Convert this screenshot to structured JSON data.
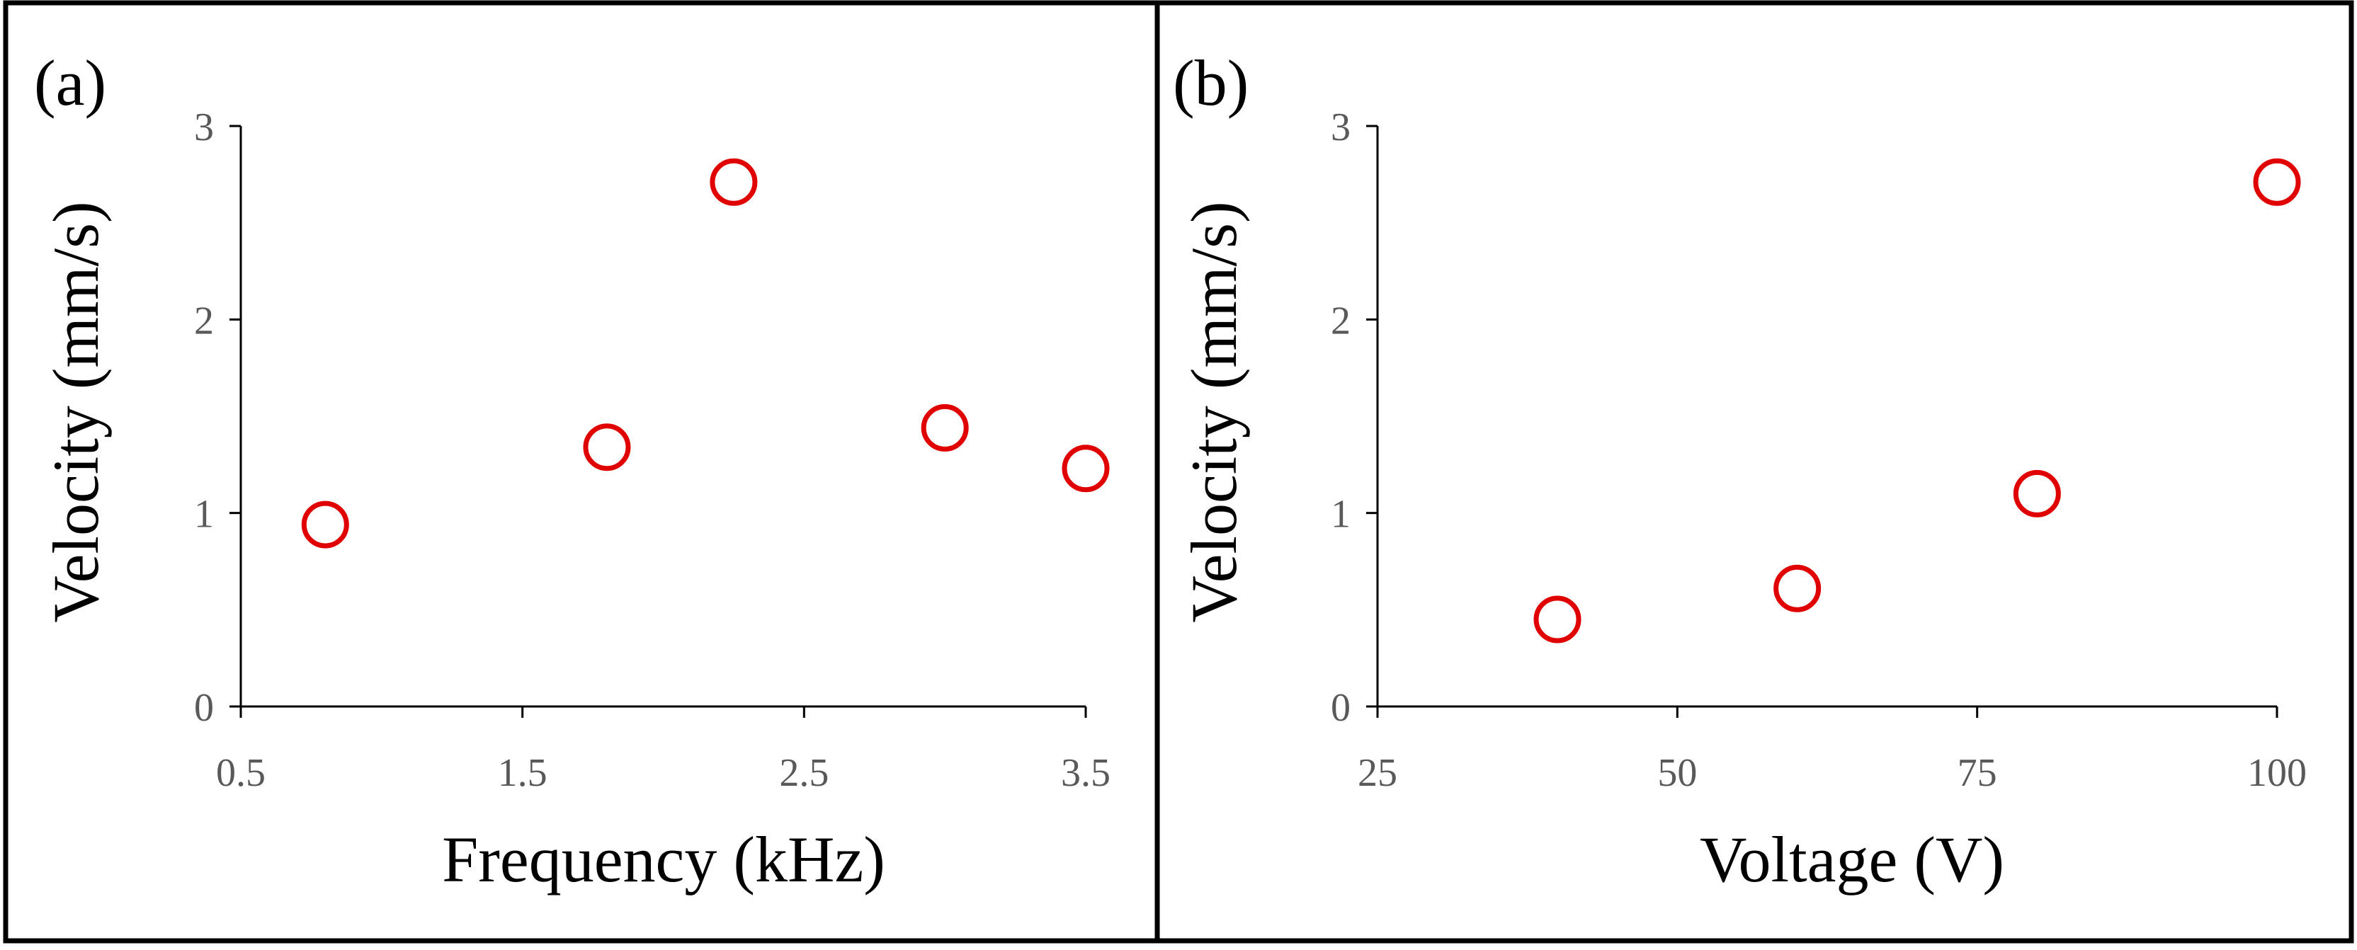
{
  "chart_data": [
    {
      "type": "scatter",
      "panel_label": "(a)",
      "xlabel": "Frequency (kHz)",
      "ylabel": "Velocity (mm/s)",
      "xlim": [
        0.5,
        3.5
      ],
      "ylim": [
        0,
        3
      ],
      "xticks": [
        "0.5",
        "1.5",
        "2.5",
        "3.5"
      ],
      "yticks": [
        "0",
        "1",
        "2",
        "3"
      ],
      "grid": false,
      "marker_color": "#e00000",
      "series": [
        {
          "x": [
            0.8,
            1.8,
            2.25,
            3.0,
            3.5
          ],
          "y": [
            0.94,
            1.34,
            2.71,
            1.44,
            1.23
          ]
        }
      ]
    },
    {
      "type": "scatter",
      "panel_label": "(b)",
      "xlabel": "Voltage (V)",
      "ylabel": "Velocity (mm/s)",
      "xlim": [
        25,
        100
      ],
      "ylim": [
        0,
        3
      ],
      "xticks": [
        "25",
        "50",
        "75",
        "100"
      ],
      "yticks": [
        "0",
        "1",
        "2",
        "3"
      ],
      "grid": false,
      "marker_color": "#e00000",
      "series": [
        {
          "x": [
            40,
            60,
            80,
            100
          ],
          "y": [
            0.45,
            0.61,
            1.1,
            2.71
          ]
        }
      ]
    }
  ]
}
